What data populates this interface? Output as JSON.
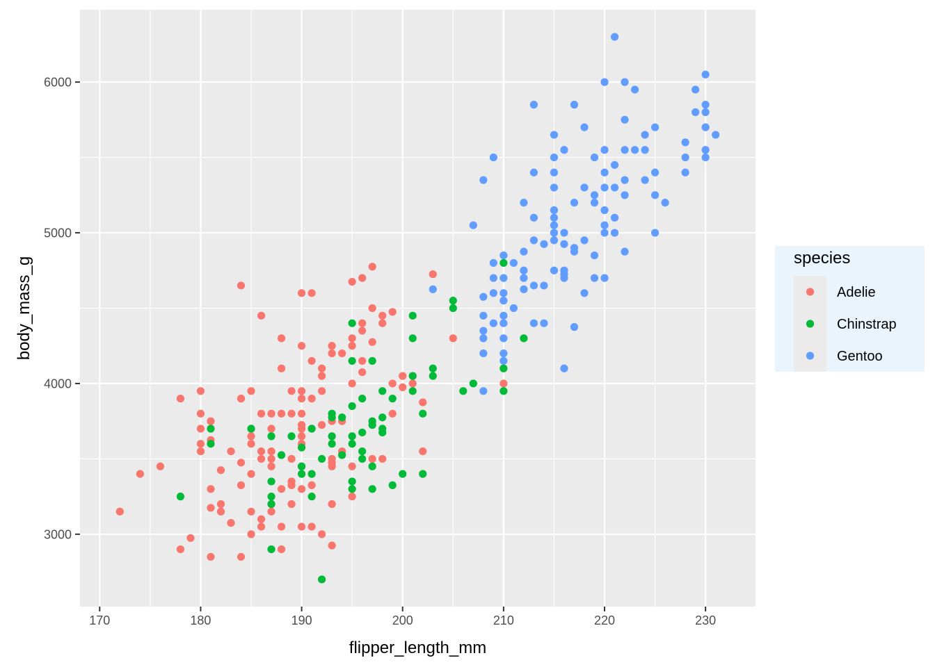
{
  "chart_data": {
    "type": "scatter",
    "xlabel": "flipper_length_mm",
    "ylabel": "body_mass_g",
    "xlim": [
      168.05,
      234.95
    ],
    "ylim": [
      2520,
      6480
    ],
    "x_ticks": [
      170,
      180,
      190,
      200,
      210,
      220,
      230
    ],
    "y_ticks": [
      3000,
      4000,
      5000,
      6000
    ],
    "grid": true,
    "legend": {
      "title": "species",
      "placement": "right"
    },
    "series": [
      {
        "name": "Adelie",
        "color": "#F8766D",
        "points": [
          [
            172,
            3150
          ],
          [
            174,
            3400
          ],
          [
            176,
            3450
          ],
          [
            178,
            3900
          ],
          [
            178,
            2900
          ],
          [
            179,
            2975
          ],
          [
            180,
            3950
          ],
          [
            180,
            3800
          ],
          [
            180,
            3700
          ],
          [
            180,
            3600
          ],
          [
            180,
            3550
          ],
          [
            181,
            3750
          ],
          [
            181,
            3625
          ],
          [
            181,
            3300
          ],
          [
            181,
            3175
          ],
          [
            181,
            2850
          ],
          [
            182,
            3425
          ],
          [
            182,
            3200
          ],
          [
            182,
            3150
          ],
          [
            183,
            3550
          ],
          [
            183,
            3075
          ],
          [
            184,
            4650
          ],
          [
            184,
            3900
          ],
          [
            184,
            3900
          ],
          [
            184,
            3475
          ],
          [
            184,
            3325
          ],
          [
            184,
            2850
          ],
          [
            185,
            3950
          ],
          [
            185,
            3700
          ],
          [
            185,
            3650
          ],
          [
            185,
            3600
          ],
          [
            185,
            3400
          ],
          [
            185,
            3150
          ],
          [
            185,
            3000
          ],
          [
            186,
            4450
          ],
          [
            186,
            3800
          ],
          [
            186,
            3550
          ],
          [
            186,
            3500
          ],
          [
            186,
            3100
          ],
          [
            186,
            3050
          ],
          [
            187,
            3800
          ],
          [
            187,
            3700
          ],
          [
            187,
            3550
          ],
          [
            187,
            3500
          ],
          [
            187,
            3450
          ],
          [
            187,
            3200
          ],
          [
            187,
            3150
          ],
          [
            188,
            4300
          ],
          [
            188,
            4100
          ],
          [
            188,
            3800
          ],
          [
            188,
            3300
          ],
          [
            188,
            3050
          ],
          [
            188,
            2900
          ],
          [
            189,
            3950
          ],
          [
            189,
            3800
          ],
          [
            189,
            3500
          ],
          [
            189,
            3350
          ],
          [
            189,
            3325
          ],
          [
            189,
            3200
          ],
          [
            190,
            4600
          ],
          [
            190,
            4250
          ],
          [
            190,
            3950
          ],
          [
            190,
            3900
          ],
          [
            190,
            3800
          ],
          [
            190,
            3725
          ],
          [
            190,
            3700
          ],
          [
            190,
            3650
          ],
          [
            190,
            3600
          ],
          [
            190,
            3450
          ],
          [
            190,
            3300
          ],
          [
            190,
            3050
          ],
          [
            191,
            4600
          ],
          [
            191,
            4150
          ],
          [
            191,
            3900
          ],
          [
            191,
            3700
          ],
          [
            191,
            3325
          ],
          [
            191,
            3050
          ],
          [
            192,
            4100
          ],
          [
            192,
            4050
          ],
          [
            192,
            3950
          ],
          [
            192,
            3725
          ],
          [
            192,
            3000
          ],
          [
            193,
            4250
          ],
          [
            193,
            4200
          ],
          [
            193,
            3750
          ],
          [
            193,
            3500
          ],
          [
            193,
            3475
          ],
          [
            193,
            3450
          ],
          [
            193,
            3200
          ],
          [
            193,
            2925
          ],
          [
            194,
            4200
          ],
          [
            194,
            3750
          ],
          [
            194,
            3550
          ],
          [
            195,
            4675
          ],
          [
            195,
            4300
          ],
          [
            195,
            4250
          ],
          [
            195,
            4000
          ],
          [
            195,
            3450
          ],
          [
            195,
            3250
          ],
          [
            196,
            4700
          ],
          [
            196,
            4400
          ],
          [
            196,
            4350
          ],
          [
            196,
            4150
          ],
          [
            196,
            4075
          ],
          [
            197,
            4775
          ],
          [
            197,
            4500
          ],
          [
            197,
            4275
          ],
          [
            197,
            3500
          ],
          [
            198,
            4450
          ],
          [
            198,
            4400
          ],
          [
            198,
            3500
          ],
          [
            199,
            4475
          ],
          [
            199,
            4000
          ],
          [
            199,
            3800
          ],
          [
            200,
            4050
          ],
          [
            200,
            3975
          ],
          [
            201,
            4050
          ],
          [
            201,
            4000
          ],
          [
            202,
            3875
          ],
          [
            202,
            3550
          ],
          [
            203,
            4725
          ],
          [
            205,
            4300
          ],
          [
            210,
            4000
          ]
        ]
      },
      {
        "name": "Chinstrap",
        "color": "#00BA38",
        "points": [
          [
            178,
            3250
          ],
          [
            181,
            3700
          ],
          [
            181,
            3600
          ],
          [
            185,
            3700
          ],
          [
            187,
            3650
          ],
          [
            187,
            3350
          ],
          [
            187,
            3250
          ],
          [
            187,
            3200
          ],
          [
            187,
            2900
          ],
          [
            188,
            3525
          ],
          [
            189,
            3650
          ],
          [
            190,
            3575
          ],
          [
            190,
            3450
          ],
          [
            190,
            3400
          ],
          [
            191,
            3700
          ],
          [
            191,
            3400
          ],
          [
            191,
            3250
          ],
          [
            192,
            3500
          ],
          [
            192,
            2700
          ],
          [
            193,
            3800
          ],
          [
            193,
            3775
          ],
          [
            193,
            3650
          ],
          [
            193,
            3600
          ],
          [
            194,
            3775
          ],
          [
            194,
            3525
          ],
          [
            195,
            4400
          ],
          [
            195,
            4150
          ],
          [
            195,
            3850
          ],
          [
            195,
            3650
          ],
          [
            195,
            3600
          ],
          [
            195,
            3350
          ],
          [
            195,
            3300
          ],
          [
            196,
            3900
          ],
          [
            196,
            3675
          ],
          [
            196,
            3550
          ],
          [
            196,
            3500
          ],
          [
            197,
            4150
          ],
          [
            197,
            3750
          ],
          [
            197,
            3725
          ],
          [
            197,
            3450
          ],
          [
            197,
            3300
          ],
          [
            198,
            3950
          ],
          [
            198,
            3775
          ],
          [
            198,
            3700
          ],
          [
            198,
            3675
          ],
          [
            199,
            3900
          ],
          [
            199,
            3325
          ],
          [
            200,
            3400
          ],
          [
            201,
            4450
          ],
          [
            201,
            4300
          ],
          [
            201,
            4050
          ],
          [
            201,
            3950
          ],
          [
            202,
            3800
          ],
          [
            202,
            3400
          ],
          [
            203,
            4100
          ],
          [
            203,
            4050
          ],
          [
            205,
            4550
          ],
          [
            205,
            4500
          ],
          [
            206,
            3950
          ],
          [
            207,
            4000
          ],
          [
            210,
            4800
          ],
          [
            210,
            4100
          ],
          [
            210,
            3950
          ],
          [
            212,
            4300
          ]
        ]
      },
      {
        "name": "Gentoo",
        "color": "#619CFF",
        "points": [
          [
            203,
            4625
          ],
          [
            207,
            5050
          ],
          [
            208,
            5350
          ],
          [
            208,
            4575
          ],
          [
            208,
            4450
          ],
          [
            208,
            4350
          ],
          [
            208,
            4300
          ],
          [
            208,
            4200
          ],
          [
            208,
            3950
          ],
          [
            209,
            5500
          ],
          [
            209,
            4800
          ],
          [
            209,
            4700
          ],
          [
            209,
            4600
          ],
          [
            209,
            4400
          ],
          [
            210,
            4850
          ],
          [
            210,
            4700
          ],
          [
            210,
            4600
          ],
          [
            210,
            4550
          ],
          [
            210,
            4450
          ],
          [
            210,
            4400
          ],
          [
            210,
            4300
          ],
          [
            210,
            4200
          ],
          [
            210,
            4150
          ],
          [
            211,
            4800
          ],
          [
            211,
            4500
          ],
          [
            212,
            5200
          ],
          [
            212,
            4875
          ],
          [
            212,
            4750
          ],
          [
            212,
            4700
          ],
          [
            212,
            4625
          ],
          [
            213,
            5850
          ],
          [
            213,
            5400
          ],
          [
            213,
            5100
          ],
          [
            213,
            4950
          ],
          [
            213,
            4650
          ],
          [
            213,
            4400
          ],
          [
            214,
            4925
          ],
          [
            214,
            4650
          ],
          [
            214,
            4400
          ],
          [
            215,
            5650
          ],
          [
            215,
            5500
          ],
          [
            215,
            5400
          ],
          [
            215,
            5300
          ],
          [
            215,
            5150
          ],
          [
            215,
            5100
          ],
          [
            215,
            5050
          ],
          [
            215,
            5000
          ],
          [
            215,
            4950
          ],
          [
            215,
            4750
          ],
          [
            216,
            5550
          ],
          [
            216,
            5000
          ],
          [
            216,
            4925
          ],
          [
            216,
            4750
          ],
          [
            216,
            4725
          ],
          [
            216,
            4700
          ],
          [
            216,
            4100
          ],
          [
            217,
            5850
          ],
          [
            217,
            5200
          ],
          [
            217,
            4900
          ],
          [
            217,
            4875
          ],
          [
            217,
            4375
          ],
          [
            218,
            5700
          ],
          [
            218,
            5300
          ],
          [
            218,
            4950
          ],
          [
            218,
            4600
          ],
          [
            219,
            5500
          ],
          [
            219,
            5250
          ],
          [
            219,
            5200
          ],
          [
            219,
            4850
          ],
          [
            219,
            4700
          ],
          [
            220,
            6000
          ],
          [
            220,
            5550
          ],
          [
            220,
            5400
          ],
          [
            220,
            5300
          ],
          [
            220,
            5150
          ],
          [
            220,
            5050
          ],
          [
            220,
            5000
          ],
          [
            220,
            4700
          ],
          [
            221,
            6300
          ],
          [
            221,
            5450
          ],
          [
            221,
            5300
          ],
          [
            221,
            5100
          ],
          [
            221,
            5000
          ],
          [
            222,
            6000
          ],
          [
            222,
            5750
          ],
          [
            222,
            5550
          ],
          [
            222,
            5350
          ],
          [
            222,
            5250
          ],
          [
            222,
            4875
          ],
          [
            223,
            5950
          ],
          [
            223,
            5550
          ],
          [
            224,
            5650
          ],
          [
            224,
            5550
          ],
          [
            224,
            5350
          ],
          [
            225,
            5700
          ],
          [
            225,
            5400
          ],
          [
            225,
            5250
          ],
          [
            225,
            5000
          ],
          [
            226,
            5200
          ],
          [
            228,
            5600
          ],
          [
            228,
            5500
          ],
          [
            228,
            5400
          ],
          [
            229,
            5950
          ],
          [
            229,
            5800
          ],
          [
            230,
            6050
          ],
          [
            230,
            5850
          ],
          [
            230,
            5800
          ],
          [
            230,
            5700
          ],
          [
            230,
            5700
          ],
          [
            230,
            5550
          ],
          [
            230,
            5500
          ],
          [
            231,
            5650
          ]
        ]
      }
    ]
  }
}
